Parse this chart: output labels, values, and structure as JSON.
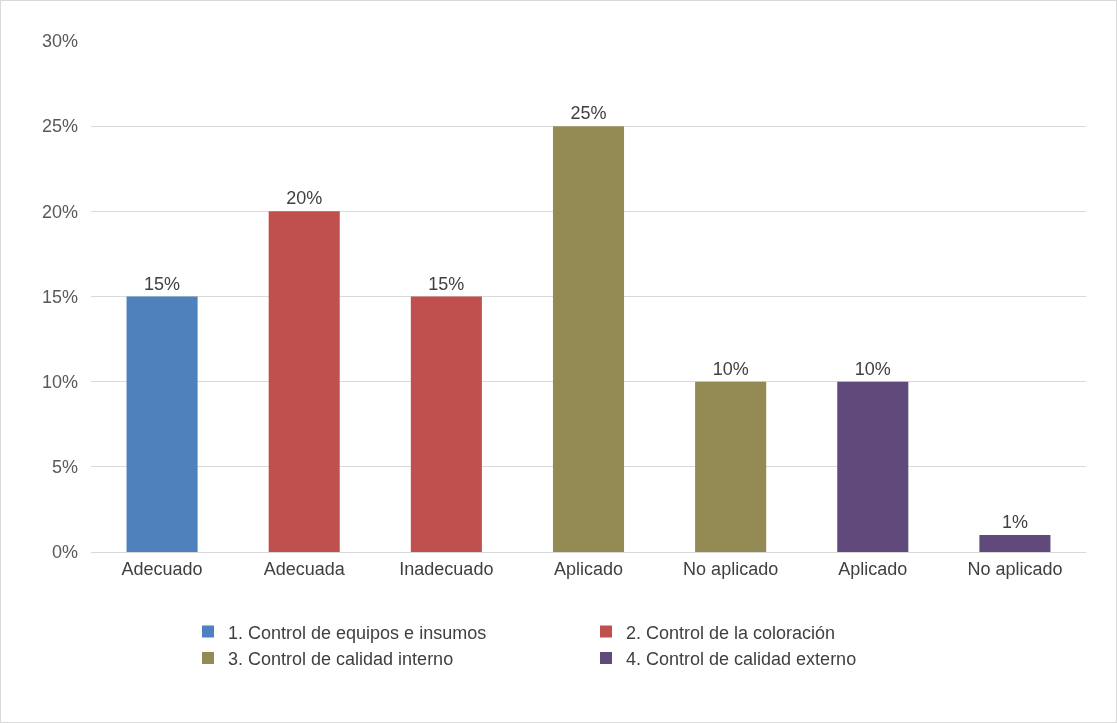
{
  "chart_data": {
    "type": "bar",
    "categories": [
      "Adecuado",
      "Adecuada",
      "Inadecuado",
      "Aplicado",
      "No aplicado",
      "Aplicado",
      "No aplicado"
    ],
    "series": [
      {
        "name": "1. Control de equipos e insumos",
        "color": "#4f81bd",
        "values": [
          15,
          null,
          null,
          null,
          null,
          null,
          null
        ],
        "value_labels": [
          "15%",
          null,
          null,
          null,
          null,
          null,
          null
        ]
      },
      {
        "name": "2. Control de la coloración",
        "color": "#c0504d",
        "values": [
          null,
          20,
          15,
          null,
          null,
          null,
          null
        ],
        "value_labels": [
          null,
          "20%",
          "15%",
          null,
          null,
          null,
          null
        ]
      },
      {
        "name": "3. Control de calidad interno",
        "color": "#948a54",
        "values": [
          null,
          null,
          null,
          25,
          10,
          null,
          null
        ],
        "value_labels": [
          null,
          null,
          null,
          "25%",
          "10%",
          null,
          null
        ]
      },
      {
        "name": "4. Control de calidad externo",
        "color": "#604a7b",
        "values": [
          null,
          null,
          null,
          null,
          null,
          10,
          1
        ],
        "value_labels": [
          null,
          null,
          null,
          null,
          null,
          "10%",
          "1%"
        ]
      }
    ],
    "ylim": [
      0,
      30
    ],
    "yticks": [
      {
        "value": 0,
        "label": "0%"
      },
      {
        "value": 5,
        "label": "5%"
      },
      {
        "value": 10,
        "label": "10%"
      },
      {
        "value": 15,
        "label": "15%"
      },
      {
        "value": 20,
        "label": "20%"
      },
      {
        "value": 25,
        "label": "25%"
      },
      {
        "value": 30,
        "label": "30%"
      }
    ],
    "grid": "y",
    "legend": "bottom"
  }
}
